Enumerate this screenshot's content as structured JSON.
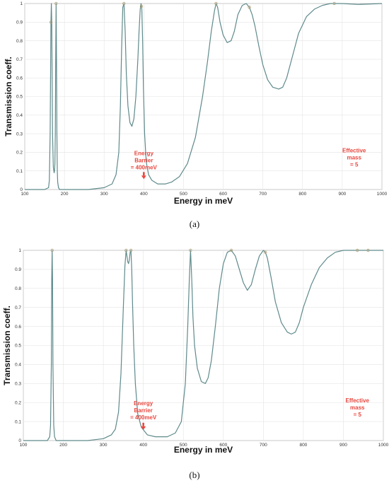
{
  "panels": [
    {
      "caption": "(a)",
      "chart_data": {
        "type": "line",
        "xlabel": "Energy in meV",
        "ylabel": "Transmission coeff.",
        "xlim": [
          100,
          1000
        ],
        "ylim": [
          0,
          1
        ],
        "xticks": [
          "100",
          "200",
          "300",
          "400",
          "500",
          "600",
          "700",
          "800",
          "900",
          "1000"
        ],
        "yticks": [
          "0",
          "0.1",
          "0.2",
          "0.3",
          "0.4",
          "0.5",
          "0.6",
          "0.7",
          "0.8",
          "0.9",
          "1"
        ],
        "grid": true,
        "line_color": "#5f8a8b",
        "marker_color": "#b4a37a",
        "x": [
          100,
          150,
          160,
          162,
          164,
          166,
          167,
          168,
          169,
          170,
          172,
          174,
          175,
          176,
          177,
          178,
          179,
          180,
          181,
          182,
          183,
          185,
          188,
          195,
          220,
          260,
          300,
          320,
          330,
          337,
          341,
          344,
          347,
          350,
          353,
          356,
          360,
          365,
          370,
          375,
          380,
          385,
          388,
          391,
          393,
          395,
          397,
          399,
          402,
          406,
          412,
          420,
          435,
          455,
          470,
          490,
          510,
          530,
          548,
          560,
          570,
          578,
          582,
          586,
          592,
          600,
          610,
          620,
          628,
          637,
          648,
          658,
          666,
          673,
          680,
          690,
          700,
          712,
          725,
          740,
          750,
          760,
          775,
          790,
          810,
          830,
          850,
          870,
          880,
          900,
          940,
          1000
        ],
        "y": [
          0,
          0,
          0.01,
          0.05,
          0.3,
          0.9,
          1,
          0.9,
          0.6,
          0.3,
          0.12,
          0.09,
          0.1,
          0.14,
          0.3,
          0.7,
          1,
          0.7,
          0.3,
          0.1,
          0.04,
          0.01,
          0,
          0,
          0,
          0,
          0.01,
          0.03,
          0.08,
          0.2,
          0.45,
          0.75,
          0.98,
          1,
          0.85,
          0.62,
          0.45,
          0.36,
          0.34,
          0.38,
          0.5,
          0.7,
          0.85,
          0.97,
          1,
          0.97,
          0.8,
          0.55,
          0.3,
          0.15,
          0.08,
          0.05,
          0.03,
          0.03,
          0.04,
          0.07,
          0.14,
          0.28,
          0.5,
          0.68,
          0.85,
          0.96,
          1,
          0.98,
          0.9,
          0.83,
          0.79,
          0.8,
          0.85,
          0.94,
          0.99,
          1,
          0.98,
          0.94,
          0.88,
          0.77,
          0.67,
          0.59,
          0.55,
          0.54,
          0.55,
          0.6,
          0.72,
          0.84,
          0.93,
          0.97,
          0.99,
          1,
          1,
          1,
          0.995,
          1
        ],
        "markers_x": [
          166,
          179,
          350,
          394,
          582,
          666,
          880
        ],
        "annotations": {
          "barrier_lines": [
            "Energy",
            "Barrier",
            "= 400meV"
          ],
          "barrier_x": 400,
          "mass_lines": [
            "Effective",
            "mass",
            "= 5"
          ]
        }
      }
    },
    {
      "caption": "(b)",
      "chart_data": {
        "type": "line",
        "xlabel": "Energy in meV",
        "ylabel": "Transmission coeff.",
        "xlim": [
          100,
          1000
        ],
        "ylim": [
          0,
          1
        ],
        "xticks": [
          "100",
          "200",
          "300",
          "400",
          "500",
          "600",
          "700",
          "800",
          "900",
          "1000"
        ],
        "yticks": [
          "0",
          "0.1",
          "0.2",
          "0.3",
          "0.4",
          "0.5",
          "0.6",
          "0.7",
          "0.8",
          "0.9",
          "1"
        ],
        "grid": true,
        "line_color": "#5f8a8b",
        "marker_color": "#b4a37a",
        "x": [
          100,
          160,
          166,
          168,
          170,
          171,
          172,
          173,
          174,
          176,
          178,
          182,
          200,
          260,
          300,
          320,
          330,
          338,
          344,
          350,
          354,
          357,
          359,
          361,
          363,
          365,
          367,
          369,
          371,
          373,
          376,
          380,
          386,
          395,
          410,
          430,
          460,
          480,
          495,
          505,
          511,
          515,
          518,
          521,
          524,
          528,
          535,
          545,
          555,
          562,
          570,
          580,
          590,
          600,
          610,
          620,
          630,
          640,
          650,
          660,
          670,
          680,
          690,
          700,
          705,
          710,
          720,
          730,
          745,
          760,
          770,
          780,
          790,
          800,
          820,
          840,
          860,
          880,
          900,
          930,
          960,
          1000
        ],
        "y": [
          0,
          0,
          0.02,
          0.08,
          0.4,
          0.85,
          1,
          0.85,
          0.4,
          0.08,
          0.02,
          0,
          0,
          0,
          0.01,
          0.03,
          0.06,
          0.15,
          0.35,
          0.7,
          0.92,
          1,
          0.97,
          0.94,
          0.93,
          0.95,
          0.99,
          1,
          0.9,
          0.72,
          0.5,
          0.3,
          0.14,
          0.07,
          0.03,
          0.02,
          0.02,
          0.04,
          0.1,
          0.3,
          0.6,
          0.85,
          1,
          0.85,
          0.65,
          0.5,
          0.38,
          0.31,
          0.3,
          0.33,
          0.42,
          0.6,
          0.8,
          0.93,
          0.99,
          1,
          0.97,
          0.9,
          0.83,
          0.79,
          0.82,
          0.9,
          0.97,
          1,
          0.99,
          0.96,
          0.85,
          0.73,
          0.62,
          0.57,
          0.56,
          0.57,
          0.62,
          0.7,
          0.82,
          0.91,
          0.96,
          0.99,
          1,
          1,
          1,
          1
        ],
        "markers_x": [
          172,
          357,
          369,
          518,
          620,
          705,
          935,
          962
        ],
        "annotations": {
          "barrier_lines": [
            "Energy",
            "Barrier",
            "= 400meV"
          ],
          "barrier_x": 400,
          "mass_lines": [
            "Effective",
            "mass",
            "= 5"
          ]
        }
      }
    }
  ]
}
